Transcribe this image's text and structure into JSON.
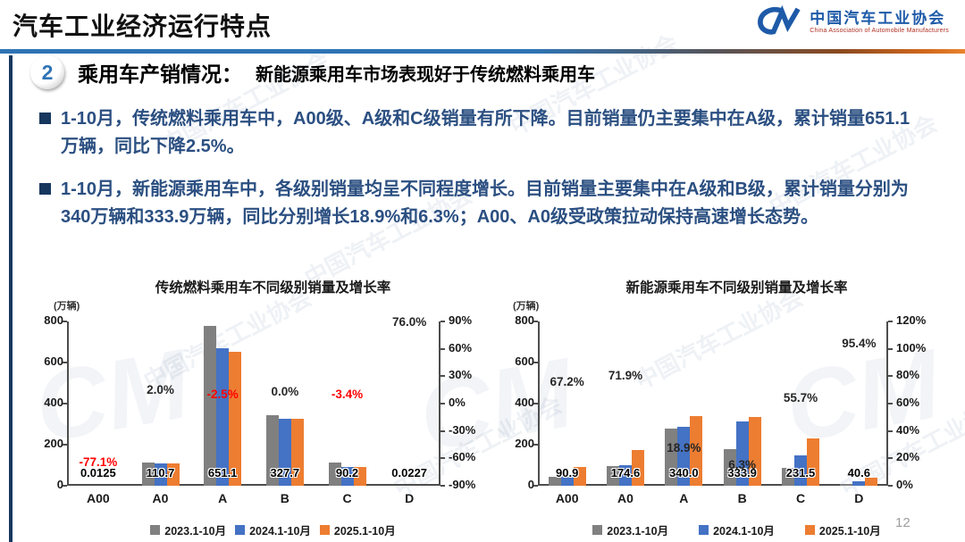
{
  "header": {
    "title": "汽车工业经济运行特点",
    "logo": {
      "mark": "CM",
      "org_name": "中国汽车工业协会",
      "org_subtitle": "China Association of Automobile Manufacturers"
    }
  },
  "section": {
    "number": "2",
    "heading": "乘用车产销情况：",
    "subheading": "新能源乘用车市场表现好于传统燃料乘用车"
  },
  "bullets": [
    "1-10月，传统燃料乘用车中，A00级、A级和C级销量有所下降。目前销量仍主要集中在A级，累计销量651.1万辆，同比下降2.5%。",
    "1-10月，新能源乘用车中，各级别销量均呈不同程度增长。目前销量主要集中在A级和B级，累计销量分别为340万辆和333.9万辆，同比分别增长18.9%和6.3%；A00、A0级受政策拉动保持高速增长态势。"
  ],
  "watermark": {
    "text": "中国汽车工业协会",
    "mark": "CM"
  },
  "page_number": "12",
  "colors": {
    "accent_blue": "#2E74B5",
    "text_navy": "#2B4F81",
    "bullet_navy": "#17375E",
    "bar_gray": "#808080",
    "bar_blue": "#4472C4",
    "bar_orange": "#ED7D31",
    "negative_red": "#FF0000",
    "divider_orange": "#E8842E"
  },
  "chart_data": [
    {
      "type": "bar",
      "title": "传统燃料乘用车不同级别销量及增长率",
      "unit_label": "(万辆)",
      "categories": [
        "A00",
        "A0",
        "A",
        "B",
        "C",
        "D"
      ],
      "series": [
        {
          "name": "2023.1-10月",
          "color": "#808080",
          "values": [
            0.05,
            114,
            778,
            344,
            113,
            0.01
          ]
        },
        {
          "name": "2024.1-10月",
          "color": "#4472C4",
          "values": [
            0.055,
            108.5,
            667.8,
            327.7,
            93.4,
            0.0129
          ]
        },
        {
          "name": "2025.1-10月",
          "color": "#ED7D31",
          "values": [
            0.0125,
            110.7,
            651.1,
            327.7,
            90.2,
            0.0227
          ]
        }
      ],
      "value_labels": [
        "0.0125",
        "110.7",
        "651.1",
        "327.7",
        "90.2",
        "0.0227"
      ],
      "growth": [
        {
          "label": "-77.1%",
          "value": -77.1,
          "color": "#FF0000"
        },
        {
          "label": "2.0%",
          "value": 2.0,
          "color": "#262626"
        },
        {
          "label": "-2.5%",
          "value": -2.5,
          "color": "#FF0000"
        },
        {
          "label": "0.0%",
          "value": 0.0,
          "color": "#262626"
        },
        {
          "label": "-3.4%",
          "value": -3.4,
          "color": "#FF0000"
        },
        {
          "label": "76.0%",
          "value": 76.0,
          "color": "#262626"
        }
      ],
      "left_axis": {
        "min": 0,
        "max": 800,
        "ticks": [
          800,
          600,
          400,
          200,
          0
        ]
      },
      "right_axis": {
        "min": -90,
        "max": 90,
        "ticks": [
          "90%",
          "60%",
          "30%",
          "0%",
          "-30%",
          "-60%",
          "-90%"
        ]
      },
      "legend_position": "bottom",
      "grid": false
    },
    {
      "type": "bar",
      "title": "新能源乘用车不同级别销量及增长率",
      "unit_label": "(万辆)",
      "categories": [
        "A00",
        "A0",
        "A",
        "B",
        "C",
        "D"
      ],
      "series": [
        {
          "name": "2023.1-10月",
          "color": "#808080",
          "values": [
            45,
            95,
            278,
            180,
            89,
            9
          ]
        },
        {
          "name": "2024.1-10月",
          "color": "#4472C4",
          "values": [
            54.4,
            101.6,
            286,
            314.1,
            148.7,
            20.8
          ]
        },
        {
          "name": "2025.1-10月",
          "color": "#ED7D31",
          "values": [
            90.9,
            174.6,
            340.0,
            333.9,
            231.5,
            40.6
          ]
        }
      ],
      "value_labels": [
        "90.9",
        "174.6",
        "340.0",
        "333.9",
        "231.5",
        "40.6"
      ],
      "growth": [
        {
          "label": "67.2%",
          "value": 67.2,
          "color": "#262626"
        },
        {
          "label": "71.9%",
          "value": 71.9,
          "color": "#262626"
        },
        {
          "label": "18.9%",
          "value": 18.9,
          "color": "#262626"
        },
        {
          "label": "6.3%",
          "value": 6.3,
          "color": "#262626"
        },
        {
          "label": "55.7%",
          "value": 55.7,
          "color": "#262626"
        },
        {
          "label": "95.4%",
          "value": 95.4,
          "color": "#262626"
        }
      ],
      "left_axis": {
        "min": 0,
        "max": 800,
        "ticks": [
          800,
          600,
          400,
          200,
          0
        ]
      },
      "right_axis": {
        "min": 0,
        "max": 120,
        "ticks": [
          "120%",
          "100%",
          "80%",
          "60%",
          "40%",
          "20%",
          "0%"
        ]
      },
      "legend_position": "bottom",
      "grid": false
    }
  ]
}
